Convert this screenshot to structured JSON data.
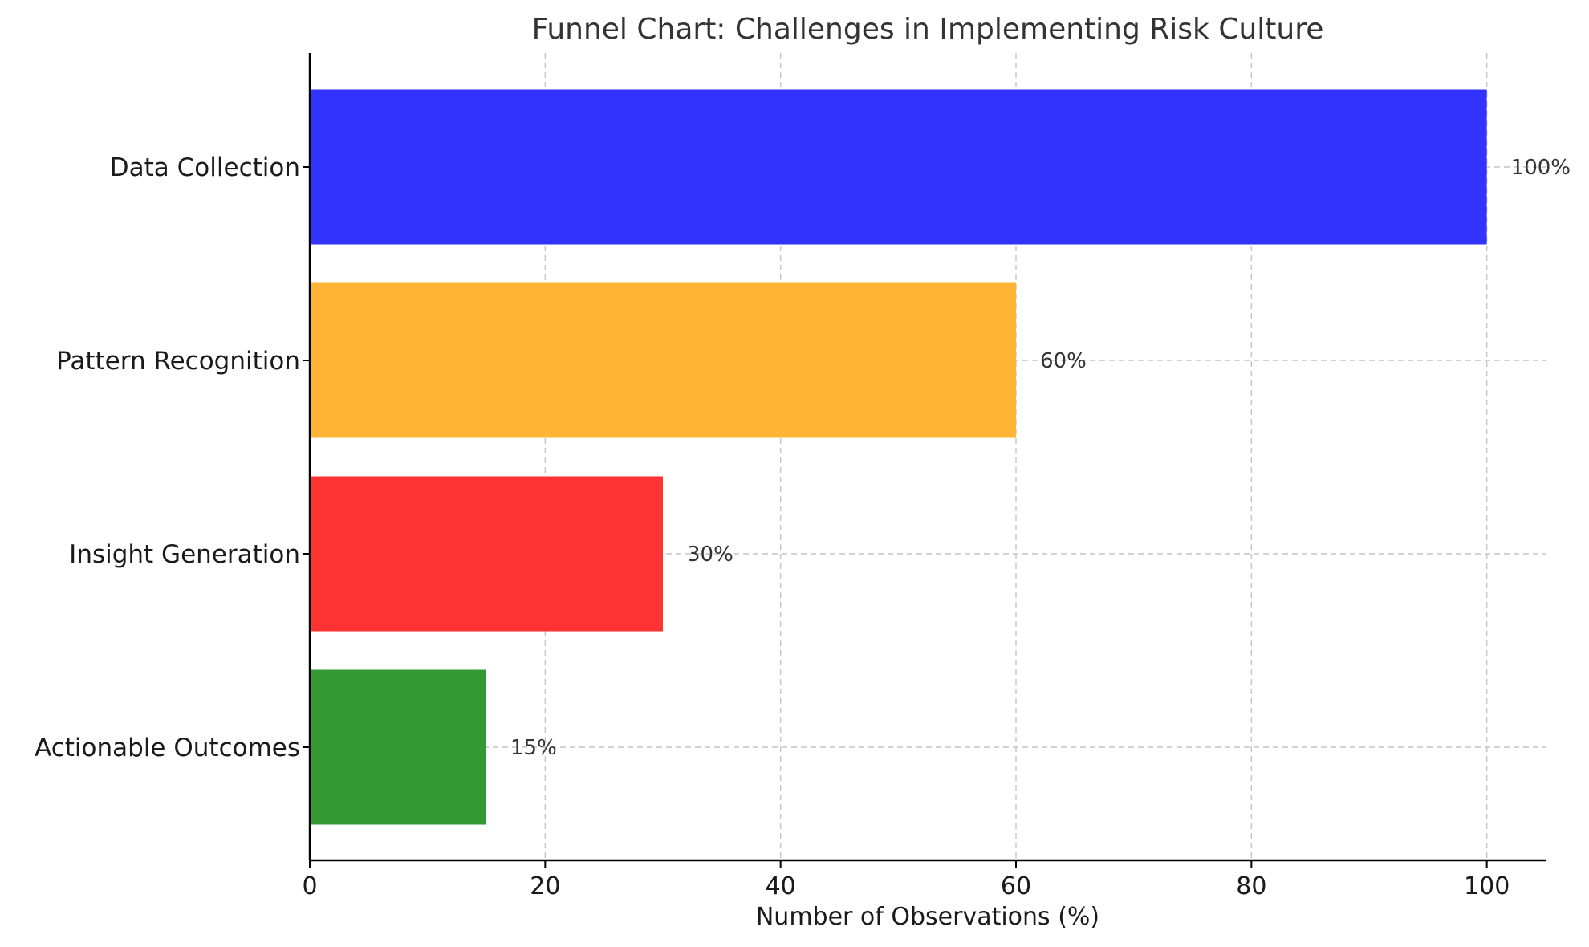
{
  "chart_data": {
    "type": "bar",
    "orientation": "horizontal",
    "title": "Funnel Chart: Challenges in Implementing Risk Culture",
    "xlabel": "Number of Observations (%)",
    "ylabel": "",
    "categories": [
      "Data Collection",
      "Pattern Recognition",
      "Insight Generation",
      "Actionable Outcomes"
    ],
    "values": [
      100,
      60,
      30,
      15
    ],
    "data_labels": [
      "100%",
      "60%",
      "30%",
      "15%"
    ],
    "colors": [
      "#3333ff",
      "#ffb533",
      "#ff3333",
      "#339933"
    ],
    "xlim": [
      0,
      105
    ],
    "xticks": [
      0,
      20,
      40,
      60,
      80,
      100
    ],
    "xtick_labels": [
      "0",
      "20",
      "40",
      "60",
      "80",
      "100"
    ],
    "grid": true
  }
}
